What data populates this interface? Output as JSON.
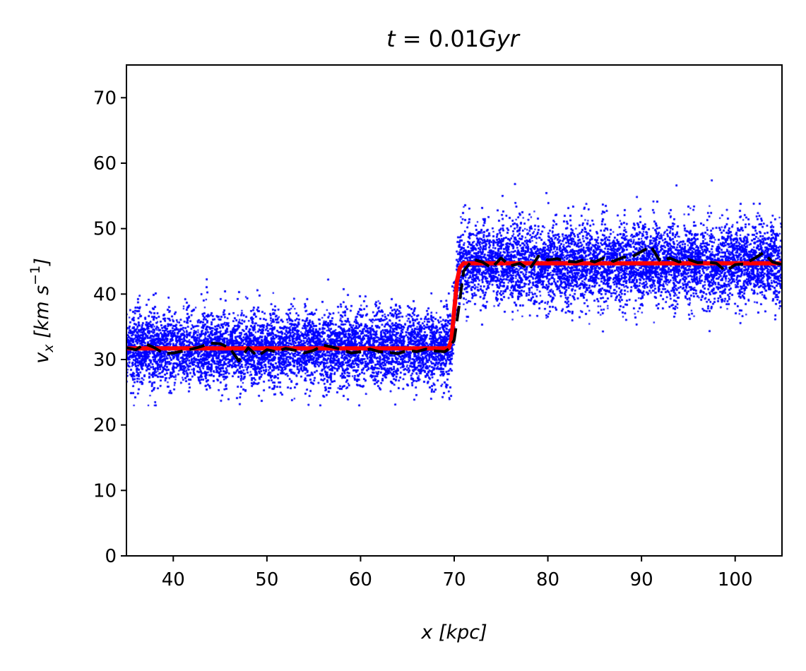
{
  "chart_data": {
    "type": "scatter",
    "title": "t = 0.01Gyr",
    "title_parts": {
      "lhs": "t",
      "eq": " = ",
      "value": "0.01",
      "unit": "Gyr"
    },
    "xlabel": "x [kpc]",
    "xlabel_parts": {
      "var": "x",
      "unit": "[kpc]"
    },
    "ylabel": "v_x [km s^-1]",
    "ylabel_parts": {
      "var": "v",
      "sub": "x",
      "unit": "[km s",
      "exp": "−1",
      "close": "]"
    },
    "xlim": [
      35,
      105
    ],
    "ylim": [
      0,
      75
    ],
    "xticks": [
      40,
      50,
      60,
      70,
      80,
      90,
      100
    ],
    "yticks": [
      0,
      10,
      20,
      30,
      40,
      50,
      60,
      70
    ],
    "grid": false,
    "colors": {
      "particles": "#0000ff",
      "analytic": "#ff0000",
      "binned_mean": "#000000",
      "axes": "#000000"
    },
    "series": [
      {
        "style": "points",
        "color": "#0000ff",
        "description_levels": {
          "left_region": {
            "x_range": [
              35,
              69.5
            ],
            "mean": 31.5,
            "spread": [
              25,
              38
            ],
            "extremes": [
              23,
              44.3
            ]
          },
          "right_region": {
            "x_range": [
              70.5,
              105
            ],
            "mean": 44.7,
            "spread": [
              38,
              52
            ],
            "extremes": [
              33,
              64.7
            ]
          }
        }
      },
      {
        "style": "solid",
        "color": "#ff0000",
        "x": [
          35,
          69.4,
          69.7,
          70.0,
          70.3,
          70.6,
          71.0,
          105
        ],
        "y": [
          31.7,
          31.7,
          33.0,
          37.5,
          42.0,
          44.0,
          44.7,
          44.7
        ]
      },
      {
        "style": "dashed",
        "color": "#000000",
        "x": [
          35,
          36,
          37,
          38,
          39,
          40,
          41,
          42,
          43,
          44,
          45,
          46,
          47,
          48,
          49,
          50,
          51,
          52,
          53,
          54,
          55,
          56,
          57,
          58,
          59,
          60,
          61,
          62,
          63,
          64,
          65,
          66,
          67,
          68,
          69,
          69.5,
          70,
          70.5,
          71,
          72,
          73,
          74,
          75,
          76,
          77,
          78,
          79,
          80,
          81,
          82,
          83,
          84,
          85,
          86,
          87,
          88,
          89,
          90,
          91,
          92,
          93,
          94,
          95,
          96,
          97,
          98,
          99,
          100,
          101,
          102,
          103,
          104,
          105
        ],
        "y": [
          31.8,
          31.5,
          32.4,
          31.8,
          30.9,
          31.0,
          31.3,
          31.6,
          32.0,
          32.5,
          32.4,
          31.8,
          29.8,
          31.8,
          30.5,
          31.5,
          31.2,
          31.7,
          31.4,
          31.0,
          31.4,
          32.2,
          31.9,
          31.5,
          31.0,
          31.2,
          31.6,
          31.2,
          31.1,
          30.9,
          31.4,
          31.2,
          31.6,
          31.3,
          31.2,
          31.7,
          33.0,
          38.0,
          43.5,
          45.3,
          44.9,
          44.0,
          45.5,
          44.3,
          44.7,
          43.7,
          45.8,
          45.2,
          45.4,
          45.0,
          44.9,
          45.3,
          44.9,
          45.5,
          45.0,
          45.6,
          45.7,
          46.5,
          47.3,
          45.0,
          45.5,
          44.9,
          45.3,
          44.8,
          44.9,
          44.7,
          43.5,
          44.5,
          44.6,
          45.4,
          46.3,
          44.9,
          44.5
        ]
      }
    ]
  }
}
